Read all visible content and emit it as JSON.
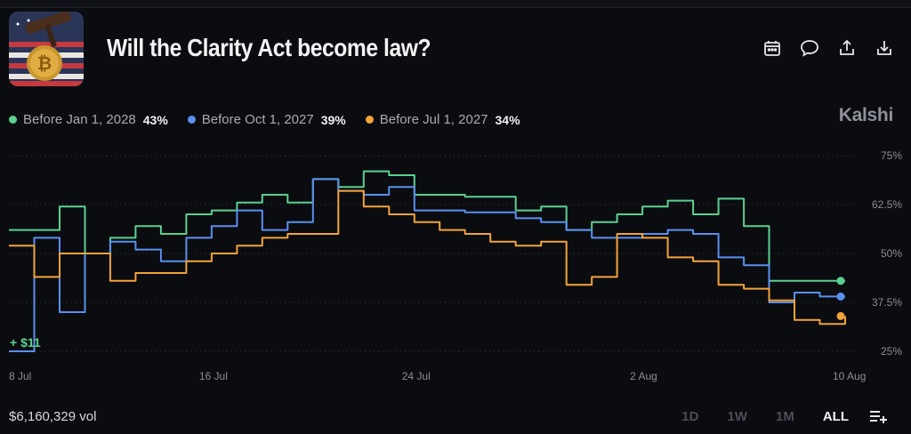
{
  "header": {
    "title": "Will the Clarity Act become law?"
  },
  "actions": [
    {
      "icon": "calendar-icon"
    },
    {
      "icon": "comment-icon"
    },
    {
      "icon": "share-icon"
    },
    {
      "icon": "download-icon"
    }
  ],
  "legend": [
    {
      "name": "Before Jan 1, 2028",
      "pct": "43%",
      "color": "#5bd18f"
    },
    {
      "name": "Before Oct 1, 2027",
      "pct": "39%",
      "color": "#5b8ff0"
    },
    {
      "name": "Before Jul 1, 2027",
      "pct": "34%",
      "color": "#f2a33a"
    }
  ],
  "brand": "Kalshi",
  "volume_note": "+ $11",
  "volume": "$6,160,329 vol",
  "ranges": [
    "1D",
    "1W",
    "1M",
    "ALL"
  ],
  "active_range": "ALL",
  "chart_data": {
    "type": "line",
    "ylim": [
      25,
      75
    ],
    "y_ticks": [
      {
        "value": 75,
        "label": "75%"
      },
      {
        "value": 62.5,
        "label": "62.5%"
      },
      {
        "value": 50,
        "label": "50%"
      },
      {
        "value": 37.5,
        "label": "37.5%"
      },
      {
        "value": 25,
        "label": "25%"
      }
    ],
    "x_ticks": [
      "8 Jul",
      "16 Jul",
      "24 Jul",
      "2 Aug",
      "10 Aug"
    ],
    "x_range": [
      "2025-07-08",
      "2025-08-10"
    ],
    "grid": true,
    "series": [
      {
        "name": "Before Jan 1, 2028",
        "color": "#5bd18f",
        "points": [
          [
            "2025-07-08",
            56
          ],
          [
            "2025-07-10",
            56
          ],
          [
            "2025-07-10",
            62
          ],
          [
            "2025-07-11",
            62
          ],
          [
            "2025-07-11",
            50
          ],
          [
            "2025-07-12",
            50
          ],
          [
            "2025-07-12",
            54
          ],
          [
            "2025-07-13",
            54
          ],
          [
            "2025-07-13",
            57
          ],
          [
            "2025-07-14",
            57
          ],
          [
            "2025-07-14",
            55
          ],
          [
            "2025-07-15",
            55
          ],
          [
            "2025-07-15",
            60
          ],
          [
            "2025-07-16",
            60
          ],
          [
            "2025-07-16",
            61
          ],
          [
            "2025-07-17",
            61
          ],
          [
            "2025-07-17",
            63
          ],
          [
            "2025-07-18",
            63
          ],
          [
            "2025-07-18",
            65
          ],
          [
            "2025-07-19",
            65
          ],
          [
            "2025-07-19",
            63
          ],
          [
            "2025-07-20",
            63
          ],
          [
            "2025-07-20",
            69
          ],
          [
            "2025-07-21",
            69
          ],
          [
            "2025-07-21",
            67
          ],
          [
            "2025-07-22",
            67
          ],
          [
            "2025-07-22",
            71
          ],
          [
            "2025-07-23",
            71
          ],
          [
            "2025-07-23",
            70
          ],
          [
            "2025-07-24",
            70
          ],
          [
            "2025-07-24",
            65
          ],
          [
            "2025-07-26",
            65
          ],
          [
            "2025-07-26",
            64.5
          ],
          [
            "2025-07-28",
            64.5
          ],
          [
            "2025-07-28",
            61
          ],
          [
            "2025-07-29",
            61
          ],
          [
            "2025-07-29",
            62
          ],
          [
            "2025-07-30",
            62
          ],
          [
            "2025-07-30",
            56
          ],
          [
            "2025-07-31",
            56
          ],
          [
            "2025-07-31",
            58
          ],
          [
            "2025-08-01",
            58
          ],
          [
            "2025-08-01",
            60
          ],
          [
            "2025-08-02",
            60
          ],
          [
            "2025-08-02",
            62
          ],
          [
            "2025-08-03",
            62
          ],
          [
            "2025-08-03",
            63.5
          ],
          [
            "2025-08-04",
            63.5
          ],
          [
            "2025-08-04",
            60
          ],
          [
            "2025-08-05",
            60
          ],
          [
            "2025-08-05",
            64
          ],
          [
            "2025-08-06",
            64
          ],
          [
            "2025-08-06",
            57
          ],
          [
            "2025-08-07",
            57
          ],
          [
            "2025-08-07",
            43
          ],
          [
            "2025-08-10",
            43
          ]
        ]
      },
      {
        "name": "Before Oct 1, 2027",
        "color": "#5b8ff0",
        "points": [
          [
            "2025-07-08",
            25
          ],
          [
            "2025-07-08",
            25
          ],
          [
            "2025-07-09",
            25
          ],
          [
            "2025-07-09",
            54
          ],
          [
            "2025-07-10",
            54
          ],
          [
            "2025-07-10",
            35
          ],
          [
            "2025-07-11",
            35
          ],
          [
            "2025-07-11",
            50
          ],
          [
            "2025-07-12",
            50
          ],
          [
            "2025-07-12",
            53
          ],
          [
            "2025-07-13",
            53
          ],
          [
            "2025-07-13",
            51
          ],
          [
            "2025-07-14",
            51
          ],
          [
            "2025-07-14",
            48
          ],
          [
            "2025-07-15",
            48
          ],
          [
            "2025-07-15",
            54
          ],
          [
            "2025-07-16",
            54
          ],
          [
            "2025-07-16",
            57
          ],
          [
            "2025-07-17",
            57
          ],
          [
            "2025-07-17",
            61
          ],
          [
            "2025-07-18",
            61
          ],
          [
            "2025-07-18",
            56
          ],
          [
            "2025-07-19",
            56
          ],
          [
            "2025-07-19",
            58
          ],
          [
            "2025-07-20",
            58
          ],
          [
            "2025-07-20",
            69
          ],
          [
            "2025-07-21",
            69
          ],
          [
            "2025-07-21",
            66
          ],
          [
            "2025-07-22",
            66
          ],
          [
            "2025-07-22",
            65
          ],
          [
            "2025-07-23",
            65
          ],
          [
            "2025-07-23",
            67
          ],
          [
            "2025-07-24",
            67
          ],
          [
            "2025-07-24",
            61
          ],
          [
            "2025-07-26",
            61
          ],
          [
            "2025-07-26",
            60.5
          ],
          [
            "2025-07-28",
            60.5
          ],
          [
            "2025-07-28",
            59
          ],
          [
            "2025-07-29",
            59
          ],
          [
            "2025-07-29",
            58
          ],
          [
            "2025-07-30",
            58
          ],
          [
            "2025-07-30",
            56
          ],
          [
            "2025-07-31",
            56
          ],
          [
            "2025-07-31",
            54
          ],
          [
            "2025-08-02",
            54
          ],
          [
            "2025-08-02",
            55
          ],
          [
            "2025-08-03",
            55
          ],
          [
            "2025-08-03",
            56
          ],
          [
            "2025-08-04",
            56
          ],
          [
            "2025-08-04",
            55
          ],
          [
            "2025-08-05",
            55
          ],
          [
            "2025-08-05",
            49
          ],
          [
            "2025-08-06",
            49
          ],
          [
            "2025-08-06",
            47
          ],
          [
            "2025-08-07",
            47
          ],
          [
            "2025-08-07",
            37.5
          ],
          [
            "2025-08-08",
            37.5
          ],
          [
            "2025-08-08",
            40
          ],
          [
            "2025-08-09",
            40
          ],
          [
            "2025-08-09",
            39
          ],
          [
            "2025-08-10",
            39
          ]
        ]
      },
      {
        "name": "Before Jul 1, 2027",
        "color": "#f2a33a",
        "points": [
          [
            "2025-07-08",
            52
          ],
          [
            "2025-07-09",
            52
          ],
          [
            "2025-07-09",
            44
          ],
          [
            "2025-07-10",
            44
          ],
          [
            "2025-07-10",
            50
          ],
          [
            "2025-07-12",
            50
          ],
          [
            "2025-07-12",
            43
          ],
          [
            "2025-07-13",
            43
          ],
          [
            "2025-07-13",
            45
          ],
          [
            "2025-07-15",
            45
          ],
          [
            "2025-07-15",
            48
          ],
          [
            "2025-07-16",
            48
          ],
          [
            "2025-07-16",
            50
          ],
          [
            "2025-07-17",
            50
          ],
          [
            "2025-07-17",
            52
          ],
          [
            "2025-07-18",
            52
          ],
          [
            "2025-07-18",
            54
          ],
          [
            "2025-07-19",
            54
          ],
          [
            "2025-07-19",
            55
          ],
          [
            "2025-07-21",
            55
          ],
          [
            "2025-07-21",
            66
          ],
          [
            "2025-07-22",
            66
          ],
          [
            "2025-07-22",
            62
          ],
          [
            "2025-07-23",
            62
          ],
          [
            "2025-07-23",
            60
          ],
          [
            "2025-07-24",
            60
          ],
          [
            "2025-07-24",
            58
          ],
          [
            "2025-07-25",
            58
          ],
          [
            "2025-07-25",
            56
          ],
          [
            "2025-07-26",
            56
          ],
          [
            "2025-07-26",
            55
          ],
          [
            "2025-07-27",
            55
          ],
          [
            "2025-07-27",
            53
          ],
          [
            "2025-07-28",
            53
          ],
          [
            "2025-07-28",
            52
          ],
          [
            "2025-07-29",
            52
          ],
          [
            "2025-07-29",
            53
          ],
          [
            "2025-07-30",
            53
          ],
          [
            "2025-07-30",
            42
          ],
          [
            "2025-07-31",
            42
          ],
          [
            "2025-07-31",
            44
          ],
          [
            "2025-08-01",
            44
          ],
          [
            "2025-08-01",
            55
          ],
          [
            "2025-08-02",
            55
          ],
          [
            "2025-08-02",
            54
          ],
          [
            "2025-08-03",
            54
          ],
          [
            "2025-08-03",
            49
          ],
          [
            "2025-08-04",
            49
          ],
          [
            "2025-08-04",
            48
          ],
          [
            "2025-08-05",
            48
          ],
          [
            "2025-08-05",
            42
          ],
          [
            "2025-08-06",
            42
          ],
          [
            "2025-08-06",
            41
          ],
          [
            "2025-08-07",
            41
          ],
          [
            "2025-08-07",
            38
          ],
          [
            "2025-08-08",
            38
          ],
          [
            "2025-08-08",
            33
          ],
          [
            "2025-08-09",
            33
          ],
          [
            "2025-08-09",
            32
          ],
          [
            "2025-08-10",
            32
          ],
          [
            "2025-08-10",
            34
          ]
        ]
      }
    ]
  }
}
